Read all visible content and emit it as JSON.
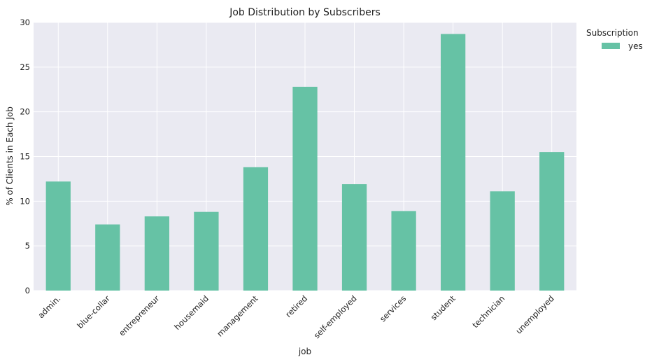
{
  "chart_data": {
    "type": "bar",
    "title": "Job Distribution by Subscribers",
    "xlabel": "job",
    "ylabel": "% of Clients in Each Job",
    "categories": [
      "admin.",
      "blue-collar",
      "entrepreneur",
      "housemaid",
      "management",
      "retired",
      "self-employed",
      "services",
      "student",
      "technician",
      "unemployed"
    ],
    "series": [
      {
        "name": "yes",
        "values": [
          12.2,
          7.4,
          8.3,
          8.8,
          13.8,
          22.8,
          11.9,
          8.9,
          28.7,
          11.1,
          15.5
        ],
        "color": "#66c2a5"
      }
    ],
    "ylim": [
      0,
      30
    ],
    "yticks": [
      0,
      5,
      10,
      15,
      20,
      25,
      30
    ],
    "grid": true,
    "legend": {
      "title": "Subscription",
      "placement": "outside-top-right"
    },
    "background_color": "#eaeaf2",
    "grid_color": "#ffffff"
  }
}
